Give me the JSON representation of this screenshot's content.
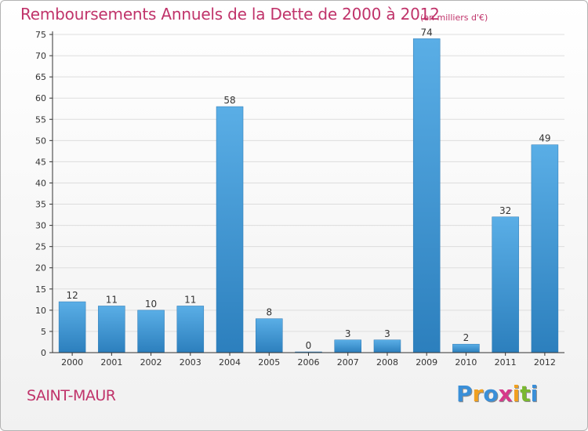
{
  "title": "Remboursements Annuels de la Dette de 2000 à 2012",
  "subtitle": "(en milliers d'€)",
  "commune": "SAINT-MAUR",
  "brand": {
    "letters": [
      "P",
      "r",
      "o",
      "x",
      "i",
      "t",
      "i"
    ],
    "colors": [
      "#3a8fd8",
      "#f0a020",
      "#3a8fd8",
      "#d63a8a",
      "#f0a020",
      "#7ab830",
      "#3a8fd8"
    ]
  },
  "colors": {
    "bar_top": "#5aaee6",
    "bar_bottom": "#2c7fbd",
    "title": "#c0336a",
    "grid": "#dddddd",
    "axis": "#333333"
  },
  "chart_data": {
    "type": "bar",
    "categories": [
      "2000",
      "2001",
      "2002",
      "2003",
      "2004",
      "2005",
      "2006",
      "2007",
      "2008",
      "2009",
      "2010",
      "2011",
      "2012"
    ],
    "values": [
      12,
      11,
      10,
      11,
      58,
      8,
      0,
      3,
      3,
      74,
      2,
      32,
      49
    ],
    "ylim": [
      0,
      75
    ],
    "yticks": [
      0,
      5,
      10,
      15,
      20,
      25,
      30,
      35,
      40,
      45,
      50,
      55,
      60,
      65,
      70,
      75
    ],
    "grid": true,
    "xlabel": "",
    "ylabel": ""
  }
}
